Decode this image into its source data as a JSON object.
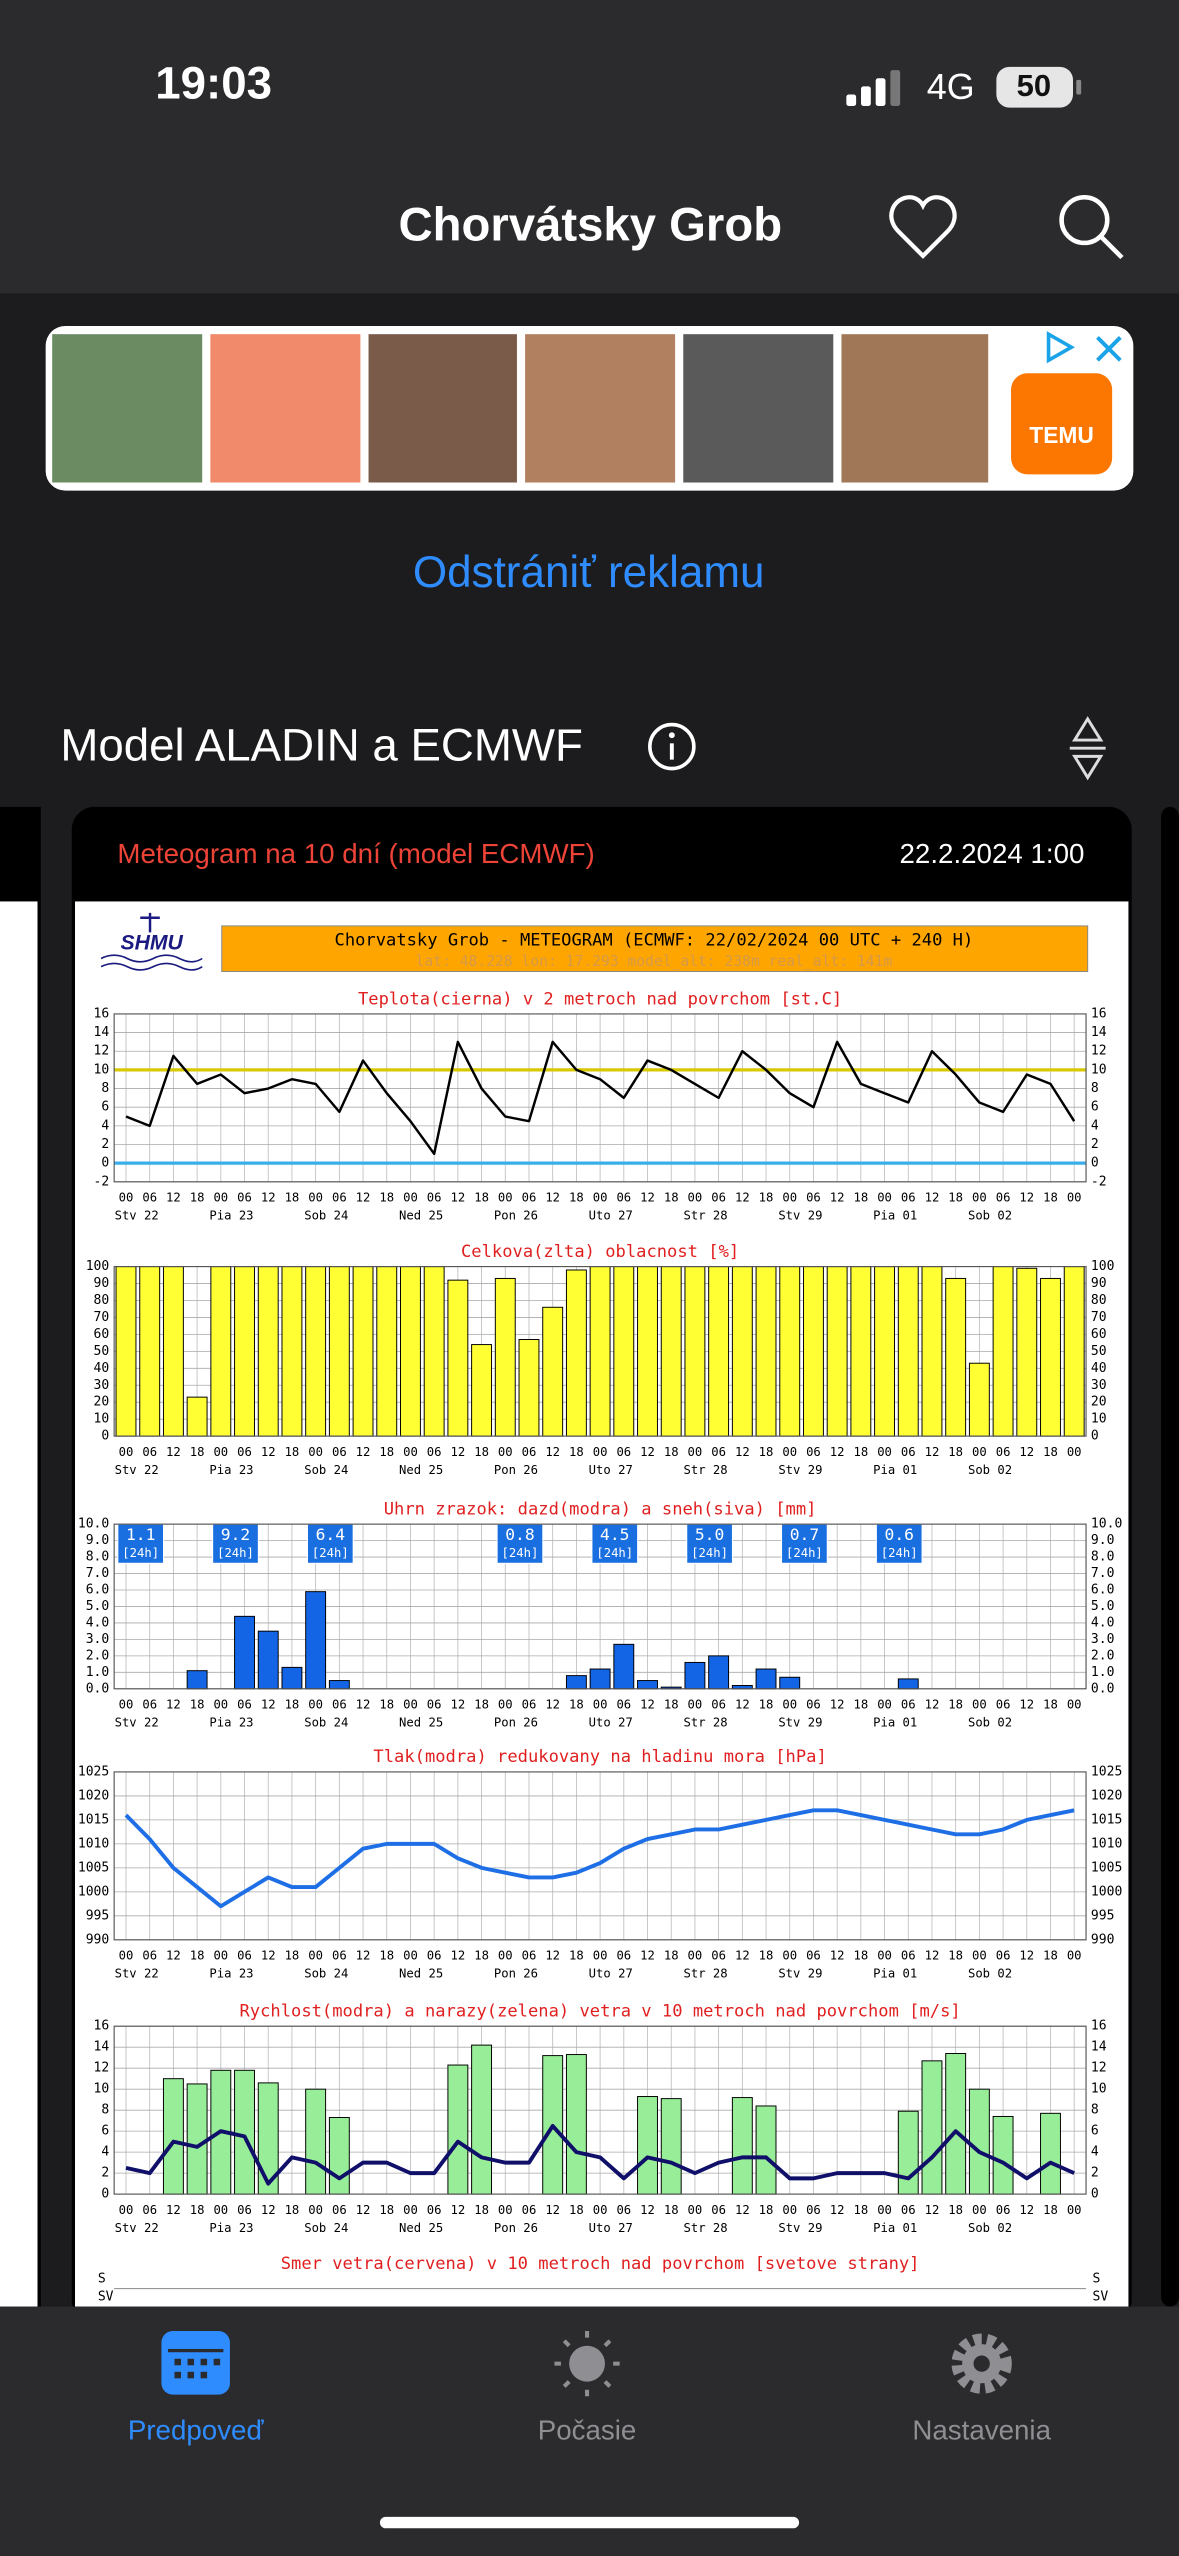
{
  "status_bar": {
    "time": "19:03",
    "network": "4G",
    "battery": 50
  },
  "header": {
    "title": "Chorvátsky Grob"
  },
  "ad": {
    "brand": "TEMU"
  },
  "remove_ad": "Odstrániť reklamu",
  "section_title": "Model ALADIN a ECMWF",
  "card": {
    "title": "Meteogram na 10 dní (model ECMWF)",
    "date": "22.2.2024 1:00"
  },
  "meteogram": {
    "logo": "SHMU",
    "title": "Chorvatsky Grob - METEOGRAM (ECMWF: 22/02/2024 00 UTC + 240 H)",
    "subtitle": "lat: 48.228  lon: 17.293  model_alt: 238m  real_alt: 141m",
    "hours": [
      "00",
      "06",
      "12",
      "18",
      "00",
      "06",
      "12",
      "18",
      "00",
      "06",
      "12",
      "18",
      "00",
      "06",
      "12",
      "18",
      "00",
      "06",
      "12",
      "18",
      "00",
      "06",
      "12",
      "18",
      "00",
      "06",
      "12",
      "18",
      "00",
      "06",
      "12",
      "18",
      "00",
      "06",
      "12",
      "18",
      "00",
      "06",
      "12",
      "18",
      "00"
    ],
    "days": [
      "Stv 22",
      "Pia 23",
      "Sob 24",
      "Ned 25",
      "Pon 26",
      "Uto 27",
      "Str 28",
      "Stv 29",
      "Pia 01",
      "Sob 02"
    ],
    "panels": [
      {
        "type": "meteogram",
        "title": "Teplota(cierna) v 2 metroch nad povrchom [st.C]",
        "ylim": [
          -2,
          16
        ],
        "yticks": [
          -2,
          0,
          2,
          4,
          6,
          8,
          10,
          12,
          14,
          16
        ],
        "hlines": [
          {
            "value": 10,
            "color": "#d8c800"
          },
          {
            "value": 0,
            "color": "#3aaee8"
          }
        ],
        "series": [
          {
            "kind": "line",
            "color": "#000000",
            "values": [
              5,
              4,
              11.5,
              8.5,
              9.5,
              7.5,
              8,
              9,
              8.5,
              5.5,
              11,
              7.5,
              4.5,
              1,
              13,
              8,
              5,
              4.5,
              13,
              10,
              9,
              7,
              11,
              10,
              8.5,
              7,
              12,
              10,
              7.5,
              6,
              13,
              8.5,
              7.5,
              6.5,
              12,
              9.5,
              6.5,
              5.5,
              9.5,
              8.5,
              4.5
            ]
          }
        ]
      },
      {
        "type": "meteogram",
        "title": "Celkova(zlta) oblacnost [%]",
        "ylim": [
          0,
          100
        ],
        "yticks": [
          0,
          10,
          20,
          30,
          40,
          50,
          60,
          70,
          80,
          90,
          100
        ],
        "series": [
          {
            "kind": "bar",
            "color": "#ffff33",
            "values": [
              100,
              100,
              100,
              23,
              100,
              100,
              100,
              100,
              100,
              100,
              100,
              100,
              100,
              100,
              92,
              54,
              93,
              57,
              76,
              98,
              100,
              100,
              100,
              100,
              100,
              100,
              100,
              100,
              100,
              100,
              100,
              100,
              100,
              100,
              100,
              93,
              43,
              100,
              99,
              93,
              100
            ]
          }
        ]
      },
      {
        "type": "meteogram",
        "title": "Uhrn zrazok: dazd(modra) a sneh(siva) [mm]",
        "ylim": [
          0,
          10
        ],
        "yticks": [
          {
            "value": 0,
            "label": "0.0"
          },
          {
            "value": 1,
            "label": "1.0"
          },
          {
            "value": 2,
            "label": "2.0"
          },
          {
            "value": 3,
            "label": "3.0"
          },
          {
            "value": 4,
            "label": "4.0"
          },
          {
            "value": 5,
            "label": "5.0"
          },
          {
            "value": 6,
            "label": "6.0"
          },
          {
            "value": 7,
            "label": "7.0"
          },
          {
            "value": 8,
            "label": "8.0"
          },
          {
            "value": 9,
            "label": "9.0"
          },
          {
            "value": 10,
            "label": "10.0"
          }
        ],
        "totals": [
          1.1,
          9.2,
          6.4,
          null,
          0.8,
          4.5,
          5.0,
          0.7,
          0.6,
          null
        ],
        "totals_labels": [
          "1.1",
          "9.2",
          "6.4",
          null,
          "0.8",
          "4.5",
          "5.0",
          "0.7",
          "0.6",
          null
        ],
        "totals_unit": "[24h]",
        "series": [
          {
            "kind": "bar",
            "color": "#1464e6",
            "values": [
              0,
              0,
              0,
              1.1,
              0,
              4.4,
              3.5,
              1.3,
              5.9,
              0.5,
              0,
              0,
              0,
              0,
              0,
              0,
              0,
              0,
              0,
              0.8,
              1.2,
              2.7,
              0.5,
              0.1,
              1.6,
              2,
              0.2,
              1.2,
              0.7,
              0,
              0,
              0,
              0,
              0.6,
              0,
              0,
              0,
              0,
              0,
              0,
              0
            ]
          }
        ]
      },
      {
        "type": "meteogram",
        "title": "Tlak(modra) redukovany na hladinu mora [hPa]",
        "ylim": [
          990,
          1025
        ],
        "yticks": [
          990,
          995,
          1000,
          1005,
          1010,
          1015,
          1020,
          1025
        ],
        "series": [
          {
            "kind": "line",
            "color": "#1e6fe6",
            "values": [
              1016,
              1011,
              1005,
              1001,
              997,
              1000,
              1003,
              1001,
              1001,
              1005,
              1009,
              1010,
              1010,
              1010,
              1007,
              1005,
              1004,
              1003,
              1003,
              1004,
              1006,
              1009,
              1011,
              1012,
              1013,
              1013,
              1014,
              1015,
              1016,
              1017,
              1017,
              1016,
              1015,
              1014,
              1013,
              1012,
              1012,
              1013,
              1015,
              1016,
              1017
            ]
          }
        ]
      },
      {
        "type": "meteogram",
        "title": "Rychlost(modra) a narazy(zelena) vetra v 10 metroch nad povrchom [m/s]",
        "ylim": [
          0,
          16
        ],
        "yticks": [
          0,
          2,
          4,
          6,
          8,
          10,
          12,
          14,
          16
        ],
        "series": [
          {
            "kind": "bar",
            "color": "#98ee98",
            "values": [
              null,
              null,
              11,
              10.5,
              11.8,
              11.8,
              10.6,
              null,
              10,
              7.3,
              null,
              null,
              null,
              null,
              12.3,
              14.2,
              null,
              null,
              13.2,
              13.3,
              null,
              null,
              9.3,
              9.1,
              null,
              null,
              9.2,
              8.4,
              null,
              null,
              null,
              null,
              null,
              7.9,
              12.7,
              13.4,
              10,
              7.4,
              null,
              7.7,
              null
            ]
          },
          {
            "kind": "line",
            "color": "#10106a",
            "values": [
              2.5,
              2,
              5,
              4.5,
              6,
              5.5,
              1,
              3.5,
              3,
              1.5,
              3,
              3,
              2,
              2,
              5,
              3.5,
              3,
              3,
              6.5,
              4,
              3.5,
              1.5,
              3.5,
              3,
              2,
              3,
              3.5,
              3.5,
              1.5,
              1.5,
              2,
              2,
              2,
              1.5,
              3.5,
              6,
              4,
              3,
              1.5,
              3,
              2
            ]
          }
        ]
      },
      {
        "type": "partial",
        "title": "Smer vetra(cervena) v 10 metroch nad povrchom [svetove strany]",
        "ylabels": [
          "S",
          "SV"
        ]
      }
    ]
  },
  "tab_bar": {
    "tabs": [
      "Predpoveď",
      "Počasie",
      "Nastavenia"
    ]
  }
}
